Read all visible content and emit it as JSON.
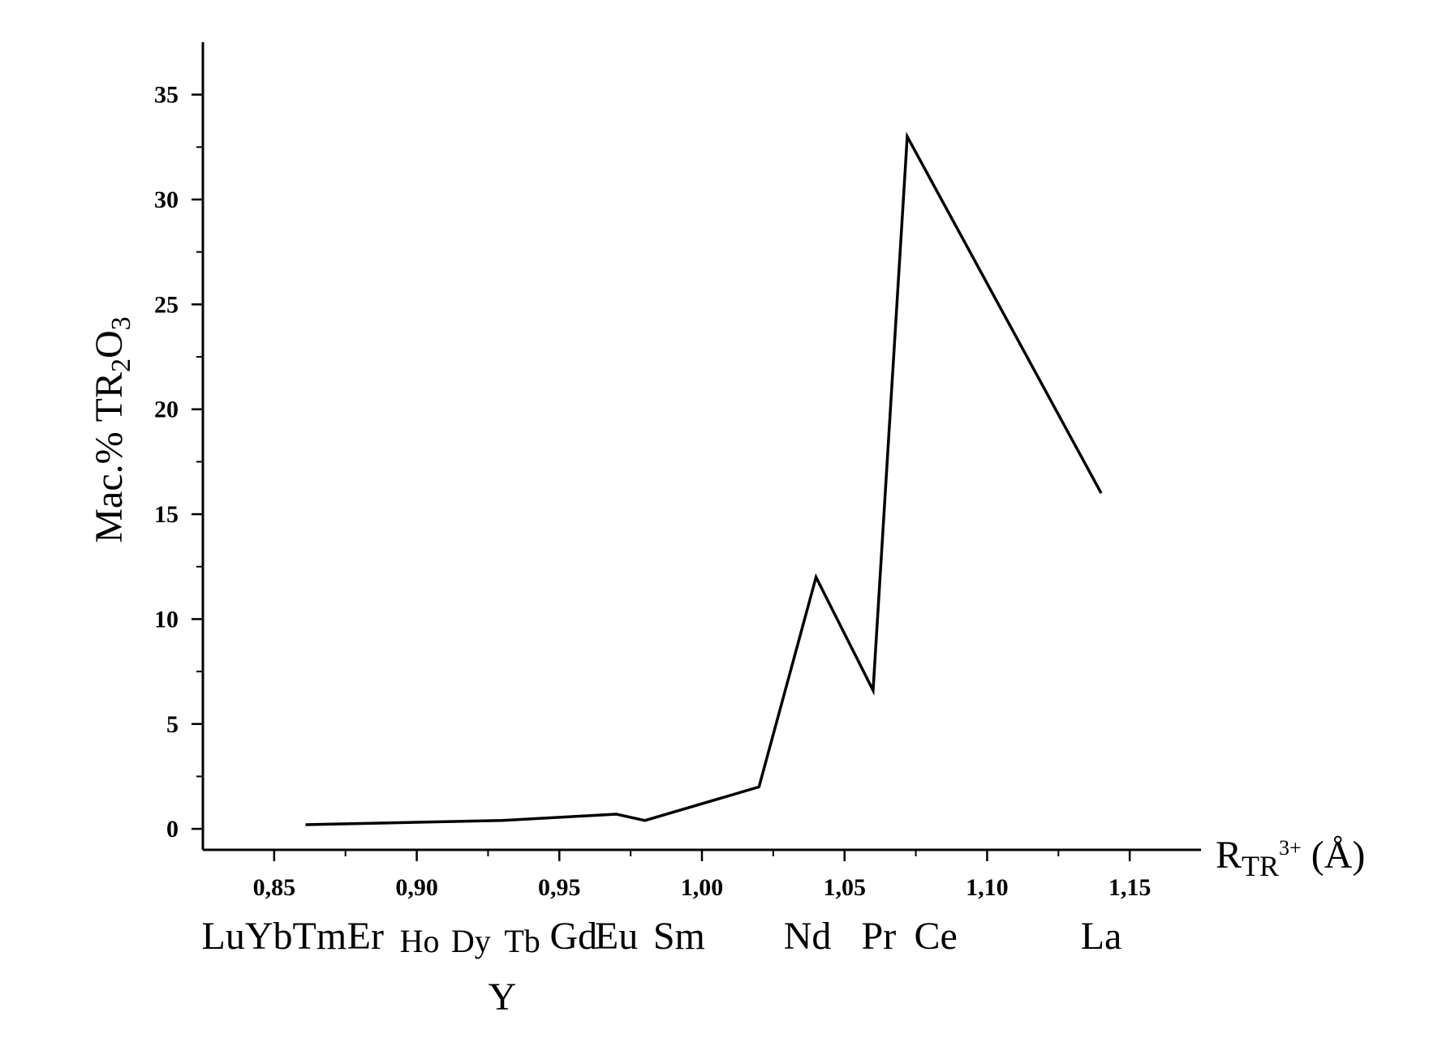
{
  "chart_data": {
    "type": "line",
    "xlabel": {
      "main": "R",
      "sub": "TR",
      "sup": "3+",
      "unit": " (Å)"
    },
    "ylabel": {
      "main": "Мас.% TR",
      "sub1": "2",
      "mid": "O",
      "sub2": "3"
    },
    "xlim": [
      0.825,
      1.175
    ],
    "ylim": [
      -1,
      37.5
    ],
    "x_ticks": [
      {
        "value": 0.85,
        "label": "0,85"
      },
      {
        "value": 0.9,
        "label": "0,90"
      },
      {
        "value": 0.95,
        "label": "0,95"
      },
      {
        "value": 1.0,
        "label": "1,00"
      },
      {
        "value": 1.05,
        "label": "1,05"
      },
      {
        "value": 1.1,
        "label": "1,10"
      },
      {
        "value": 1.15,
        "label": "1,15"
      }
    ],
    "y_ticks": [
      {
        "value": 0,
        "label": "0"
      },
      {
        "value": 5,
        "label": "5"
      },
      {
        "value": 10,
        "label": "10"
      },
      {
        "value": 15,
        "label": "15"
      },
      {
        "value": 20,
        "label": "20"
      },
      {
        "value": 25,
        "label": "25"
      },
      {
        "value": 30,
        "label": "30"
      },
      {
        "value": 35,
        "label": "35"
      }
    ],
    "series": [
      {
        "x": [
          0.861,
          0.93,
          0.97,
          0.98,
          1.02,
          1.04,
          1.06,
          1.072,
          1.14
        ],
        "y": [
          0.2,
          0.4,
          0.7,
          0.4,
          2.0,
          12.0,
          6.6,
          33.0,
          16.0
        ]
      }
    ],
    "element_labels": [
      {
        "text": "LuYbTm",
        "x": 0.85,
        "row": 1,
        "size": "large"
      },
      {
        "text": "Er",
        "x": 0.882,
        "row": 1,
        "size": "large"
      },
      {
        "text": "Ho",
        "x": 0.901,
        "row": 1,
        "size": "small"
      },
      {
        "text": "Dy",
        "x": 0.919,
        "row": 1,
        "size": "small"
      },
      {
        "text": "Tb",
        "x": 0.937,
        "row": 1,
        "size": "small"
      },
      {
        "text": "Gd",
        "x": 0.955,
        "row": 1,
        "size": "large"
      },
      {
        "text": "Eu",
        "x": 0.97,
        "row": 1,
        "size": "large"
      },
      {
        "text": "Sm",
        "x": 0.992,
        "row": 1,
        "size": "large"
      },
      {
        "text": "Nd",
        "x": 1.037,
        "row": 1,
        "size": "large"
      },
      {
        "text": "Pr",
        "x": 1.062,
        "row": 1,
        "size": "large"
      },
      {
        "text": "Ce",
        "x": 1.082,
        "row": 1,
        "size": "large"
      },
      {
        "text": "La",
        "x": 1.14,
        "row": 1,
        "size": "large"
      },
      {
        "text": "Y",
        "x": 0.93,
        "row": 2,
        "size": "large"
      }
    ],
    "grid": false,
    "legend": "none"
  }
}
